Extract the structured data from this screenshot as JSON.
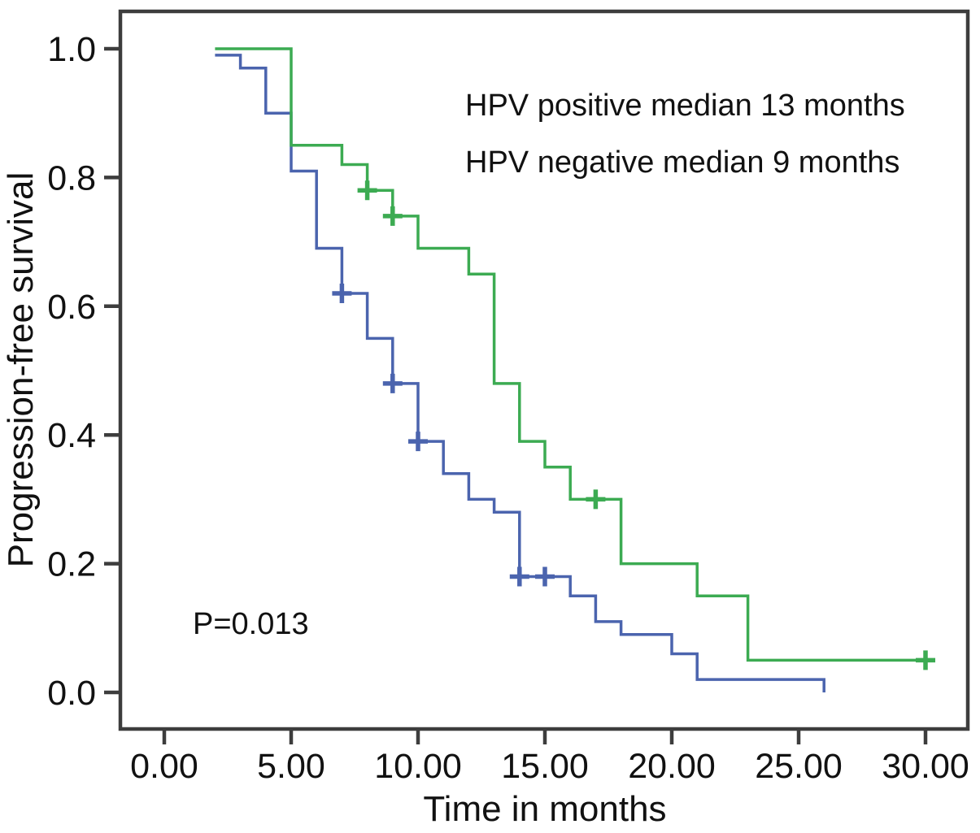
{
  "chart_data": {
    "type": "line",
    "subtype": "kaplan-meier-step-curves",
    "title": "",
    "xlabel": "Time in months",
    "ylabel": "Progression-free survival",
    "xlim": [
      0,
      30
    ],
    "ylim": [
      0.0,
      1.0
    ],
    "grid": false,
    "legend_position": "none",
    "x_ticks": [
      {
        "value": 0,
        "label": "0.00"
      },
      {
        "value": 5,
        "label": "5.00"
      },
      {
        "value": 10,
        "label": "10.00"
      },
      {
        "value": 15,
        "label": "15.00"
      },
      {
        "value": 20,
        "label": "20.00"
      },
      {
        "value": 25,
        "label": "25.00"
      },
      {
        "value": 30,
        "label": "30.00"
      }
    ],
    "y_ticks": [
      {
        "value": 1.0,
        "label": "1.0"
      },
      {
        "value": 0.8,
        "label": "0.8"
      },
      {
        "value": 0.6,
        "label": "0.6"
      },
      {
        "value": 0.4,
        "label": "0.4"
      },
      {
        "value": 0.2,
        "label": "0.2"
      },
      {
        "value": 0.0,
        "label": "0.0"
      }
    ],
    "series": [
      {
        "id": "hpv-negative",
        "name": "HPV negative",
        "color": "#4b64ae",
        "median_months": 9,
        "steps": [
          [
            2,
            0.99
          ],
          [
            3,
            0.97
          ],
          [
            4,
            0.9
          ],
          [
            5,
            0.81
          ],
          [
            6,
            0.69
          ],
          [
            7,
            0.62
          ],
          [
            8,
            0.55
          ],
          [
            9,
            0.48
          ],
          [
            10,
            0.39
          ],
          [
            11,
            0.34
          ],
          [
            12,
            0.3
          ],
          [
            13,
            0.28
          ],
          [
            14,
            0.18
          ],
          [
            16,
            0.15
          ],
          [
            17,
            0.11
          ],
          [
            18,
            0.09
          ],
          [
            20,
            0.06
          ],
          [
            21,
            0.02
          ],
          [
            26,
            0.0
          ]
        ],
        "censor_marks": [
          [
            7,
            0.62
          ],
          [
            9,
            0.48
          ],
          [
            10,
            0.39
          ],
          [
            14,
            0.18
          ],
          [
            15,
            0.18
          ]
        ]
      },
      {
        "id": "hpv-positive",
        "name": "HPV positive",
        "color": "#3cab52",
        "median_months": 13,
        "steps": [
          [
            2,
            1.0
          ],
          [
            5,
            0.85
          ],
          [
            7,
            0.82
          ],
          [
            8,
            0.78
          ],
          [
            9,
            0.74
          ],
          [
            10,
            0.69
          ],
          [
            12,
            0.65
          ],
          [
            13,
            0.48
          ],
          [
            14,
            0.39
          ],
          [
            15,
            0.35
          ],
          [
            16,
            0.3
          ],
          [
            18,
            0.2
          ],
          [
            21,
            0.15
          ],
          [
            23,
            0.05
          ],
          [
            30,
            0.05
          ]
        ],
        "censor_marks": [
          [
            8,
            0.78
          ],
          [
            9,
            0.74
          ],
          [
            17,
            0.3
          ],
          [
            30,
            0.05
          ]
        ]
      }
    ],
    "annotations": [
      {
        "id": "hpv-positive-median",
        "text": "HPV positive median 13 months"
      },
      {
        "id": "hpv-negative-median",
        "text": "HPV negative median 9 months"
      },
      {
        "id": "p-value",
        "text": "P=0.013"
      }
    ]
  }
}
